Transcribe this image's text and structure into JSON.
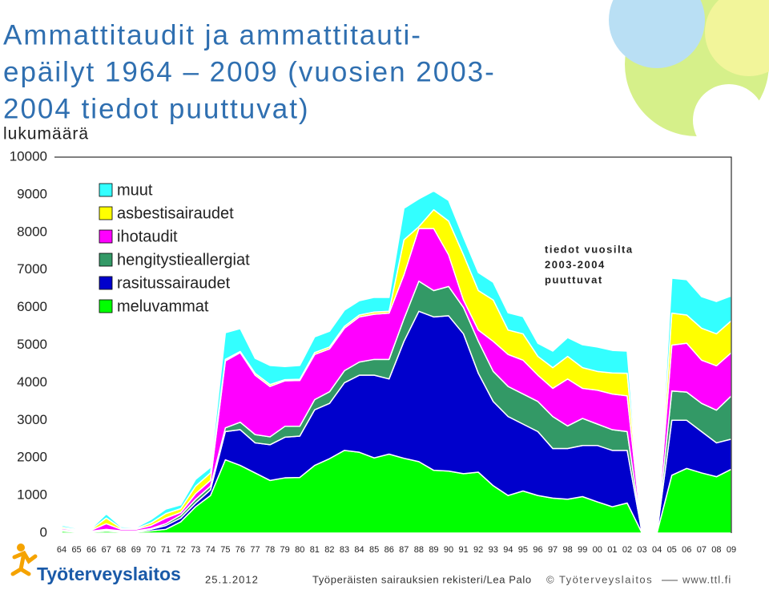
{
  "chart_data": {
    "type": "stacked-area",
    "title": [
      "Ammattitaudit ja ammattitauti-",
      "epäilyt 1964 – 2009 (vuosien 2003-",
      "2004 tiedot puuttuvat)"
    ],
    "y_label": "lukumäärä",
    "annotation": [
      "tiedot vuosilta",
      "2003-2004",
      "puuttuvat"
    ],
    "categories": [
      "64",
      "65",
      "66",
      "67",
      "68",
      "69",
      "70",
      "71",
      "72",
      "73",
      "74",
      "75",
      "76",
      "77",
      "78",
      "79",
      "80",
      "81",
      "82",
      "83",
      "84",
      "85",
      "86",
      "87",
      "88",
      "89",
      "90",
      "91",
      "92",
      "93",
      "94",
      "95",
      "96",
      "97",
      "98",
      "99",
      "00",
      "01",
      "02",
      "03",
      "04",
      "05",
      "06",
      "07",
      "08",
      "09"
    ],
    "ylim": [
      0,
      10000
    ],
    "yticks": [
      0,
      1000,
      2000,
      3000,
      4000,
      5000,
      6000,
      7000,
      8000,
      9000,
      10000
    ],
    "series": [
      {
        "name": "meluvammat",
        "color": "#00ff00",
        "values": [
          50,
          30,
          30,
          50,
          30,
          30,
          60,
          100,
          300,
          700,
          1000,
          1950,
          1800,
          1600,
          1400,
          1470,
          1480,
          1800,
          1980,
          2200,
          2150,
          2000,
          2100,
          1990,
          1900,
          1670,
          1650,
          1580,
          1620,
          1260,
          1000,
          1120,
          1000,
          930,
          900,
          970,
          830,
          700,
          800,
          0,
          0,
          1540,
          1720,
          1600,
          1500,
          1700
        ]
      },
      {
        "name": "rasitussairaudet",
        "color": "#0000cc",
        "values": [
          10,
          10,
          10,
          30,
          20,
          20,
          40,
          100,
          100,
          100,
          150,
          750,
          950,
          800,
          950,
          1080,
          1100,
          1480,
          1470,
          1800,
          2050,
          2200,
          2000,
          3110,
          4000,
          4080,
          4130,
          3720,
          2630,
          2240,
          2100,
          1780,
          1700,
          1320,
          1350,
          1360,
          1500,
          1500,
          1400,
          0,
          0,
          1460,
          1280,
          1100,
          900,
          800
        ]
      },
      {
        "name": "hengitystieallergiat",
        "color": "#339966",
        "values": [
          20,
          10,
          10,
          20,
          10,
          10,
          20,
          50,
          80,
          100,
          100,
          100,
          200,
          220,
          210,
          290,
          260,
          270,
          310,
          320,
          350,
          420,
          520,
          600,
          800,
          700,
          780,
          700,
          850,
          800,
          800,
          800,
          800,
          850,
          600,
          720,
          570,
          550,
          500,
          0,
          0,
          780,
          750,
          750,
          870,
          1150
        ]
      },
      {
        "name": "ihotaudit",
        "color": "#ff00ff",
        "values": [
          40,
          30,
          30,
          150,
          40,
          40,
          80,
          150,
          70,
          150,
          150,
          1780,
          1850,
          1580,
          1340,
          1210,
          1220,
          1200,
          1140,
          1130,
          1200,
          1200,
          1230,
          1170,
          1400,
          1650,
          840,
          200,
          300,
          800,
          850,
          900,
          700,
          750,
          1250,
          800,
          900,
          950,
          950,
          0,
          0,
          1220,
          1300,
          1150,
          1180,
          1150
        ]
      },
      {
        "name": "asbestisairaudet",
        "color": "#ffff00",
        "values": [
          40,
          20,
          20,
          150,
          30,
          20,
          70,
          120,
          100,
          200,
          200,
          40,
          30,
          50,
          50,
          30,
          30,
          50,
          50,
          50,
          50,
          60,
          50,
          930,
          50,
          500,
          900,
          1200,
          1050,
          1100,
          650,
          700,
          500,
          550,
          600,
          550,
          500,
          560,
          600,
          0,
          0,
          850,
          750,
          850,
          850,
          850
        ]
      },
      {
        "name": "muut",
        "color": "#33ffff",
        "values": [
          50,
          30,
          30,
          110,
          40,
          30,
          90,
          120,
          100,
          180,
          150,
          710,
          610,
          400,
          510,
          350,
          370,
          420,
          420,
          430,
          380,
          390,
          370,
          840,
          740,
          500,
          550,
          470,
          480,
          470,
          460,
          460,
          350,
          440,
          500,
          610,
          650,
          600,
          590,
          0,
          0,
          930,
          940,
          840,
          860,
          660
        ]
      }
    ]
  },
  "footer": {
    "logo": "Työterveyslaitos",
    "date": "25.1.2012",
    "source": "Työperäisten sairauksien rekisteri/Lea Palo",
    "copyright": "© Työterveyslaitos",
    "url": "www.ttl.fi"
  }
}
